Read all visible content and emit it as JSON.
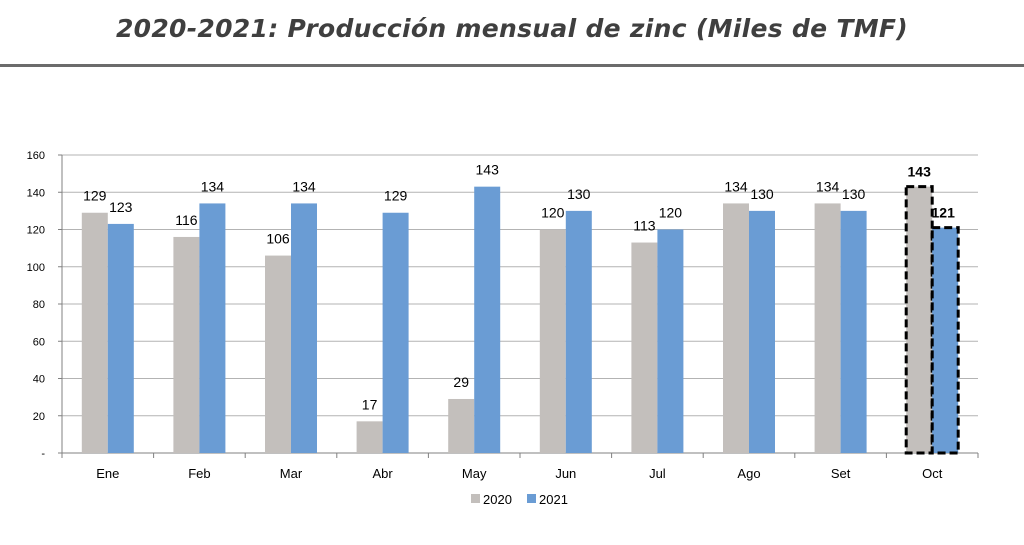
{
  "header": {
    "title": "2020-2021: Producción mensual de zinc (Miles de TMF)"
  },
  "chart_data": {
    "type": "bar",
    "title": "2020-2021: Producción mensual de zinc (Miles de TMF)",
    "xlabel": "",
    "ylabel": "",
    "categories": [
      "Ene",
      "Feb",
      "Mar",
      "Abr",
      "May",
      "Jun",
      "Jul",
      "Ago",
      "Set",
      "Oct"
    ],
    "series": [
      {
        "name": "2020",
        "values": [
          129,
          116,
          106,
          17,
          29,
          120,
          113,
          134,
          134,
          143
        ],
        "color": "#c3bfbc"
      },
      {
        "name": "2021",
        "values": [
          123,
          134,
          134,
          129,
          143,
          130,
          120,
          130,
          130,
          121
        ],
        "color": "#6a9cd4"
      }
    ],
    "ylim": [
      0,
      160
    ],
    "yticks": [
      "-",
      "20",
      "40",
      "60",
      "80",
      "100",
      "120",
      "140",
      "160"
    ],
    "grid": true,
    "legend": "bottom-center",
    "highlighted_category": "Oct"
  }
}
